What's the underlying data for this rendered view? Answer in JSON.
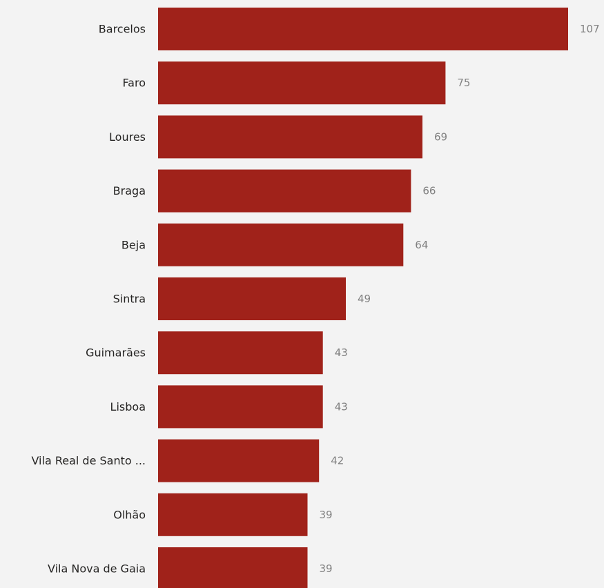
{
  "chart_data": {
    "type": "bar",
    "orientation": "horizontal",
    "categories": [
      "Barcelos",
      "Faro",
      "Loures",
      "Braga",
      "Beja",
      "Sintra",
      "Guimarães",
      "Lisboa",
      "Vila Real de Santo ...",
      "Olhão",
      "Vila Nova de Gaia"
    ],
    "values": [
      107,
      75,
      69,
      66,
      64,
      49,
      43,
      43,
      42,
      39,
      39
    ],
    "data_labels": [
      "107",
      "75",
      "69",
      "66",
      "64",
      "49",
      "43",
      "43",
      "42",
      "39",
      "39"
    ],
    "xlim": [
      0,
      107
    ],
    "grid": false,
    "legend": "none",
    "colors": {
      "bar": "#a0221a",
      "background": "#f3f3f3",
      "category_text": "#252423",
      "value_text": "#808080"
    }
  }
}
